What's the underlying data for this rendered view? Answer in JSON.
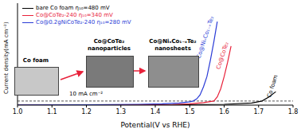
{
  "chart_data": {
    "type": "line",
    "x_label": "Potential(V vs RHE)",
    "y_label": "Current density(mA cm⁻²)",
    "xlim": [
      1.0,
      1.8
    ],
    "xticks": [
      {
        "value": 1.0,
        "label": "1.0"
      },
      1.1,
      1.2,
      1.3,
      1.4,
      1.5,
      1.6,
      1.7,
      1.8
    ],
    "ylim": [
      0,
      250
    ],
    "tick_labels": "x",
    "legend": "upper left",
    "series": [
      {
        "name": "bare Co foam η₁₀=480 mV",
        "color": "#000000",
        "x": [
          1.0,
          1.4,
          1.6,
          1.68,
          1.71,
          1.73,
          1.75
        ],
        "values": [
          0.2,
          0.5,
          2,
          5,
          10,
          20,
          33
        ]
      },
      {
        "name": "Co@CoTe₂-240 η₁₀=340 mV",
        "color": "#e8213a",
        "x": [
          1.0,
          1.3,
          1.45,
          1.5,
          1.54,
          1.57,
          1.58,
          1.59,
          1.6,
          1.61,
          1.62
        ],
        "values": [
          0.3,
          0.8,
          1.5,
          3,
          6,
          10,
          20,
          40,
          70,
          105,
          145
        ]
      },
      {
        "name": "Co@0.2gNiCoTe₂-240 η₁₀=280 mV",
        "color": "#2a3bd6",
        "x": [
          1.0,
          1.2,
          1.35,
          1.42,
          1.47,
          1.5,
          1.51,
          1.52,
          1.53,
          1.54,
          1.55,
          1.56,
          1.57,
          1.58
        ],
        "values": [
          0.5,
          1,
          2,
          3,
          5,
          8,
          10,
          15,
          25,
          45,
          70,
          110,
          155,
          205
        ]
      }
    ],
    "annotations": [
      {
        "text": "10 mA cm⁻²",
        "y": 10
      },
      {
        "text": "Co foam",
        "x": 1.745,
        "y": 45,
        "color": "#000000"
      },
      {
        "text": "Co@CoTe₂",
        "x": 1.6,
        "y": 120,
        "color": "#e8213a"
      },
      {
        "text": "Co@NiₓCo₁₋ₓTe₂",
        "x": 1.55,
        "y": 165,
        "color": "#2a3bd6"
      }
    ],
    "insets": [
      {
        "lines": [
          "Co foam"
        ]
      },
      {
        "lines": [
          "Co@CoTe₂",
          "nanoparticles"
        ]
      },
      {
        "lines": [
          "Co@NiₓCo₁₋ₓTe₂",
          "nanosheets"
        ]
      }
    ]
  }
}
